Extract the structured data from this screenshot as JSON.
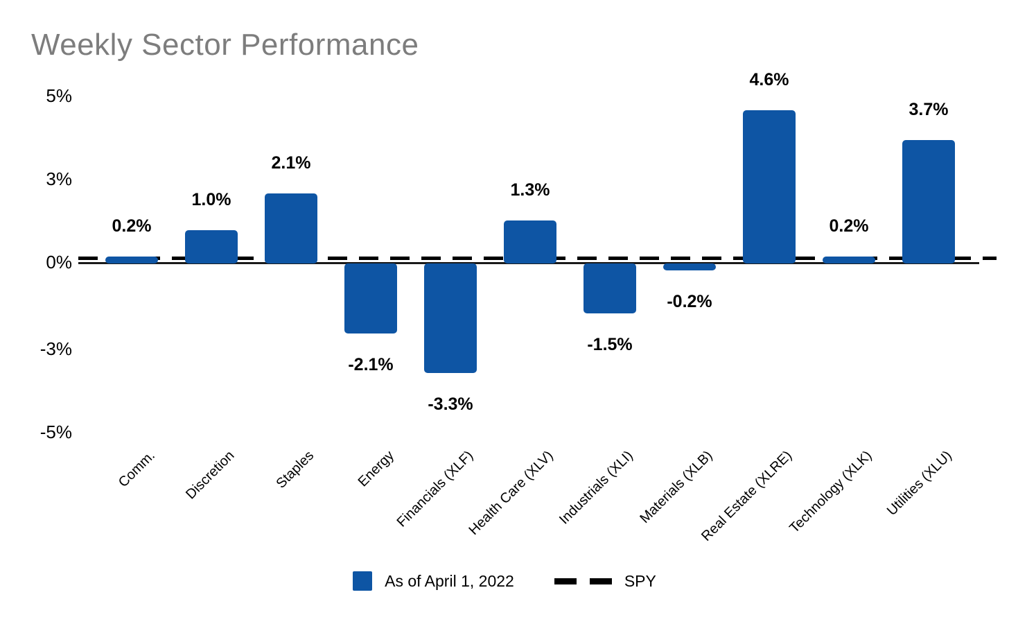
{
  "title": "Weekly Sector Performance",
  "chart_data": {
    "type": "bar",
    "title": "Weekly Sector Performance",
    "categories": [
      "Comm.",
      "Discretion",
      "Staples",
      "Energy",
      "Financials (XLF)",
      "Health Care (XLV)",
      "Industrials (XLI)",
      "Materials (XLB)",
      "Real Estate (XLRE)",
      "Technology (XLK)",
      "Utilities (XLU)"
    ],
    "values": [
      0.2,
      1.0,
      2.1,
      -2.1,
      -3.3,
      1.3,
      -1.5,
      -0.2,
      4.6,
      0.2,
      3.7
    ],
    "value_labels": [
      "0.2%",
      "1.0%",
      "2.1%",
      "-2.1%",
      "-3.3%",
      "1.3%",
      "-1.5%",
      "-0.2%",
      "4.6%",
      "0.2%",
      "3.7%"
    ],
    "yticks": [
      "5%",
      "3%",
      "0%",
      "-3%",
      "-5%"
    ],
    "ylim": [
      -5,
      5
    ],
    "grid": "off",
    "bar_color": "#0E55A4",
    "title_color": "#7d7d7d",
    "reference_line": {
      "name": "SPY",
      "style": "dashed",
      "color": "#000000",
      "position": "just above zero"
    },
    "legend": {
      "position": "bottom-center",
      "items": [
        {
          "marker": "square",
          "color": "#0E55A4",
          "label": "As of April 1, 2022"
        },
        {
          "marker": "dashed-line",
          "color": "#000000",
          "label": "SPY"
        }
      ]
    }
  }
}
